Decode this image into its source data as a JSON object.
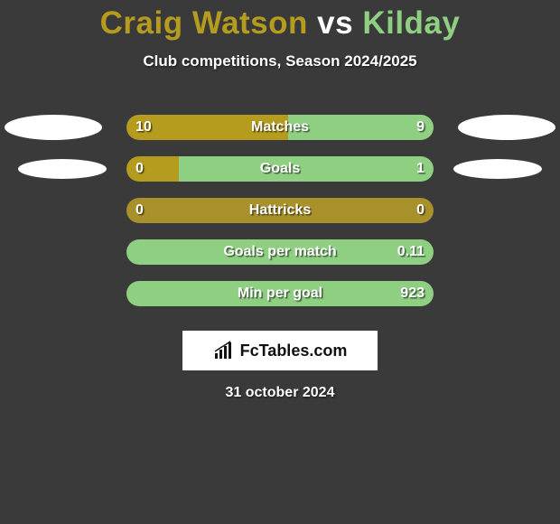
{
  "title": {
    "prefix": "Craig Watson",
    "vs": " vs ",
    "suffix": "Kilday",
    "prefix_color": "#b59c1f",
    "vs_color": "#ffffff",
    "suffix_color": "#8ecf82",
    "fontsize": 35
  },
  "subtitle": "Club competitions, Season 2024/2025",
  "background_color": "#3a3a3a",
  "bar_colors": {
    "left": "#b59c1f",
    "right": "#8ecf82",
    "neutral": "#a8902a"
  },
  "text_color": "#ffffff",
  "rows": [
    {
      "label": "Matches",
      "left": "10",
      "right": "9",
      "left_pct": 52.6,
      "right_pct": 47.4,
      "show_left_ellipse": "big",
      "show_right_ellipse": "big"
    },
    {
      "label": "Goals",
      "left": "0",
      "right": "1",
      "left_pct": 17,
      "right_pct": 83,
      "show_left_ellipse": "small",
      "show_right_ellipse": "small"
    },
    {
      "label": "Hattricks",
      "left": "0",
      "right": "0",
      "left_pct": 100,
      "right_pct": 0,
      "show_left_ellipse": "none",
      "show_right_ellipse": "none",
      "neutral": true
    },
    {
      "label": "Goals per match",
      "left": "",
      "right": "0.11",
      "left_pct": 0,
      "right_pct": 100,
      "show_left_ellipse": "none",
      "show_right_ellipse": "none"
    },
    {
      "label": "Min per goal",
      "left": "",
      "right": "923",
      "left_pct": 0,
      "right_pct": 100,
      "show_left_ellipse": "none",
      "show_right_ellipse": "none"
    }
  ],
  "logo_text": "FcTables.com",
  "date": "31 october 2024"
}
